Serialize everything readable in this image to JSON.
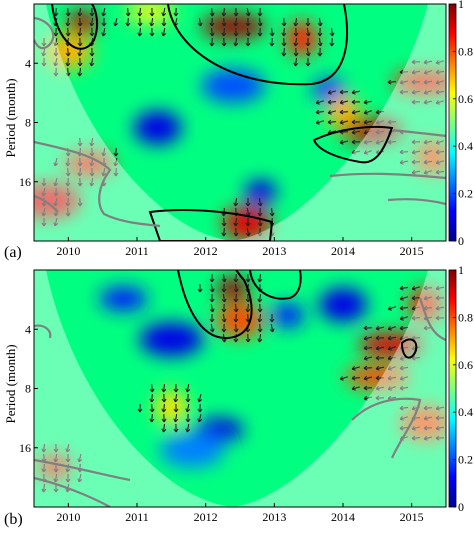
{
  "chart_data": [
    {
      "type": "heatmap",
      "subtype": "wavelet coherence",
      "panel_label": "(a)",
      "ylabel": "Period (month)",
      "x_tick_labels": [
        "2010",
        "2011",
        "2012",
        "2013",
        "2014",
        "2015"
      ],
      "x_range": [
        2009.5,
        2015.5
      ],
      "y_tick_labels": [
        "4",
        "8",
        "16"
      ],
      "y_scale": "log2",
      "y_range": [
        2,
        32
      ],
      "colorbar": {
        "ticks": [
          "0",
          "0.2",
          "0.4",
          "0.6",
          "0.8",
          "1"
        ],
        "range": [
          0,
          1
        ],
        "colormap": "jet"
      },
      "cone_of_influence": true,
      "phase_arrows": true,
      "coherence_regions": [
        {
          "t": 2010.2,
          "period": 2.5,
          "value": 0.95
        },
        {
          "t": 2010.0,
          "period": 3.5,
          "value": 0.7
        },
        {
          "t": 2012.4,
          "period": 2.6,
          "value": 0.97
        },
        {
          "t": 2013.4,
          "period": 3.0,
          "value": 0.85
        },
        {
          "t": 2011.2,
          "period": 2.2,
          "value": 0.6
        },
        {
          "t": 2012.4,
          "period": 5.2,
          "value": 0.2
        },
        {
          "t": 2013.8,
          "period": 5.5,
          "value": 0.15
        },
        {
          "t": 2011.3,
          "period": 8.5,
          "value": 0.1
        },
        {
          "t": 2014.4,
          "period": 8.8,
          "value": 0.95
        },
        {
          "t": 2014.0,
          "period": 7.0,
          "value": 0.7
        },
        {
          "t": 2010.3,
          "period": 13.0,
          "value": 0.85
        },
        {
          "t": 2009.7,
          "period": 20.0,
          "value": 0.9
        },
        {
          "t": 2012.8,
          "period": 18.0,
          "value": 0.1
        },
        {
          "t": 2012.6,
          "period": 26.0,
          "value": 0.9
        },
        {
          "t": 2015.2,
          "period": 5.0,
          "value": 0.85
        },
        {
          "t": 2015.3,
          "period": 12.0,
          "value": 0.8
        }
      ]
    },
    {
      "type": "heatmap",
      "subtype": "wavelet coherence",
      "panel_label": "(b)",
      "ylabel": "Period (month)",
      "x_tick_labels": [
        "2010",
        "2011",
        "2012",
        "2013",
        "2014",
        "2015"
      ],
      "x_range": [
        2009.5,
        2015.5
      ],
      "y_tick_labels": [
        "4",
        "8",
        "16"
      ],
      "y_scale": "log2",
      "y_range": [
        2,
        32
      ],
      "colorbar": {
        "ticks": [
          "0",
          "0.2",
          "0.4",
          "0.6",
          "0.8",
          "1"
        ],
        "range": [
          0,
          1
        ],
        "colormap": "jet"
      },
      "cone_of_influence": true,
      "phase_arrows": true,
      "coherence_regions": [
        {
          "t": 2012.4,
          "period": 2.5,
          "value": 0.97
        },
        {
          "t": 2012.5,
          "period": 3.6,
          "value": 0.8
        },
        {
          "t": 2014.7,
          "period": 4.8,
          "value": 0.9
        },
        {
          "t": 2015.2,
          "period": 3.0,
          "value": 0.85
        },
        {
          "t": 2010.8,
          "period": 2.8,
          "value": 0.15
        },
        {
          "t": 2011.5,
          "period": 4.5,
          "value": 0.1
        },
        {
          "t": 2013.2,
          "period": 3.4,
          "value": 0.15
        },
        {
          "t": 2014.0,
          "period": 3.0,
          "value": 0.1
        },
        {
          "t": 2014.5,
          "period": 7.0,
          "value": 0.8
        },
        {
          "t": 2011.5,
          "period": 10.0,
          "value": 0.65
        },
        {
          "t": 2012.2,
          "period": 13.0,
          "value": 0.1
        },
        {
          "t": 2011.8,
          "period": 16.5,
          "value": 0.25
        },
        {
          "t": 2009.8,
          "period": 20.0,
          "value": 0.85
        },
        {
          "t": 2015.2,
          "period": 12.0,
          "value": 0.8
        }
      ]
    }
  ]
}
